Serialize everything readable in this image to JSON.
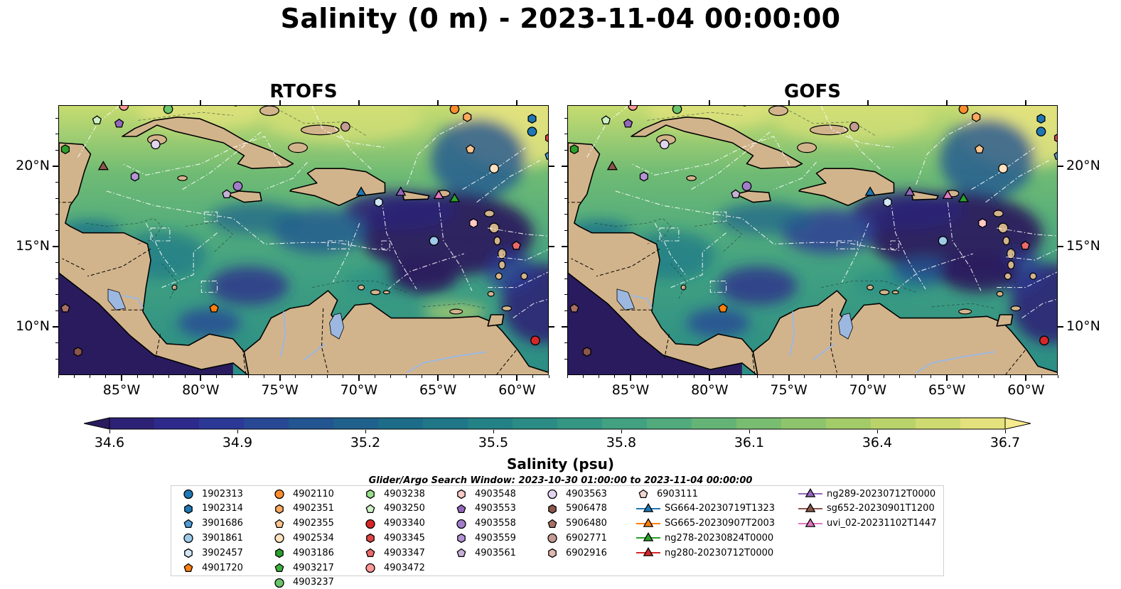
{
  "title": "Salinity (0 m) - 2023-11-04 00:00:00",
  "panels": [
    {
      "title": "RTOFS",
      "variant": "rtofs"
    },
    {
      "title": "GOFS",
      "variant": "gofs"
    }
  ],
  "lon_labels": [
    "85°W",
    "80°W",
    "75°W",
    "70°W",
    "65°W",
    "60°W"
  ],
  "lat_labels": [
    "20°N",
    "15°N",
    "10°N"
  ],
  "colorbar": {
    "ticks": [
      "34.6",
      "34.9",
      "35.2",
      "35.5",
      "35.8",
      "36.1",
      "36.4",
      "36.7"
    ],
    "label": "Salinity (psu)",
    "colors": [
      "#2a1b5e",
      "#2c2175",
      "#2d2a8c",
      "#2b3896",
      "#284896",
      "#235591",
      "#1f618c",
      "#1d6c89",
      "#1f7787",
      "#238286",
      "#2a8c85",
      "#349784",
      "#41a181",
      "#52ab7d",
      "#65b477",
      "#79bd71",
      "#8ec56c",
      "#a3cc69",
      "#b9d36a",
      "#cedb71",
      "#e3e27d",
      "#f6ea8e"
    ]
  },
  "search_window": "Glider/Argo Search Window: 2023-10-30 01:00:00 to 2023-11-04 00:00:00",
  "legend": [
    {
      "label": "1902313",
      "shape": "circle",
      "color": "#1f77b4",
      "kind": "argo"
    },
    {
      "label": "1902314",
      "shape": "hexagon",
      "color": "#1f77b4",
      "kind": "argo"
    },
    {
      "label": "3901686",
      "shape": "pentagon",
      "color": "#4d9bd6",
      "kind": "argo"
    },
    {
      "label": "3901861",
      "shape": "circle",
      "color": "#9ecae9",
      "kind": "argo"
    },
    {
      "label": "3902457",
      "shape": "hexagon",
      "color": "#cfe7f7",
      "kind": "argo"
    },
    {
      "label": "4901720",
      "shape": "pentagon",
      "color": "#ff7f0e",
      "kind": "argo"
    },
    {
      "label": "4902110",
      "shape": "circle",
      "color": "#ff8c2e",
      "kind": "argo"
    },
    {
      "label": "4902351",
      "shape": "hexagon",
      "color": "#ffa860",
      "kind": "argo"
    },
    {
      "label": "4902355",
      "shape": "pentagon",
      "color": "#ffc48e",
      "kind": "argo"
    },
    {
      "label": "4902534",
      "shape": "circle",
      "color": "#ffe2bf",
      "kind": "argo"
    },
    {
      "label": "4903186",
      "shape": "hexagon",
      "color": "#2ca02c",
      "kind": "argo"
    },
    {
      "label": "4903217",
      "shape": "pentagon",
      "color": "#3eb03e",
      "kind": "argo"
    },
    {
      "label": "4903237",
      "shape": "circle",
      "color": "#6ac46a",
      "kind": "argo"
    },
    {
      "label": "4903238",
      "shape": "hexagon",
      "color": "#98df8a",
      "kind": "argo"
    },
    {
      "label": "4903250",
      "shape": "pentagon",
      "color": "#ccf0c4",
      "kind": "argo"
    },
    {
      "label": "4903340",
      "shape": "circle",
      "color": "#d62728",
      "kind": "argo"
    },
    {
      "label": "4903345",
      "shape": "hexagon",
      "color": "#e04445",
      "kind": "argo"
    },
    {
      "label": "4903347",
      "shape": "pentagon",
      "color": "#ea6a6a",
      "kind": "argo"
    },
    {
      "label": "4903472",
      "shape": "circle",
      "color": "#ff9896",
      "kind": "argo"
    },
    {
      "label": "4903548",
      "shape": "hexagon",
      "color": "#ffc9c8",
      "kind": "argo"
    },
    {
      "label": "4903553",
      "shape": "pentagon",
      "color": "#9467bd",
      "kind": "argo"
    },
    {
      "label": "4903558",
      "shape": "circle",
      "color": "#a27dc9",
      "kind": "argo"
    },
    {
      "label": "4903559",
      "shape": "hexagon",
      "color": "#b594d6",
      "kind": "argo"
    },
    {
      "label": "4903561",
      "shape": "pentagon",
      "color": "#c5b0d5",
      "kind": "argo"
    },
    {
      "label": "4903563",
      "shape": "circle",
      "color": "#e2d4ee",
      "kind": "argo"
    },
    {
      "label": "5906478",
      "shape": "hexagon",
      "color": "#8c564b",
      "kind": "argo"
    },
    {
      "label": "5906480",
      "shape": "pentagon",
      "color": "#a87063",
      "kind": "argo"
    },
    {
      "label": "6902771",
      "shape": "circle",
      "color": "#c49c94",
      "kind": "argo"
    },
    {
      "label": "6902916",
      "shape": "hexagon",
      "color": "#e0b8ad",
      "kind": "argo"
    },
    {
      "label": "6903111",
      "shape": "pentagon",
      "color": "#f2d6cf",
      "kind": "argo"
    },
    {
      "label": "SG664-20230719T1323",
      "shape": "triangle",
      "color": "#1f77b4",
      "kind": "glider"
    },
    {
      "label": "SG665-20230907T2003",
      "shape": "triangle",
      "color": "#ff7f0e",
      "kind": "glider"
    },
    {
      "label": "ng278-20230824T0000",
      "shape": "triangle",
      "color": "#2ca02c",
      "kind": "glider"
    },
    {
      "label": "ng280-20230712T0000",
      "shape": "triangle",
      "color": "#d62728",
      "kind": "glider"
    },
    {
      "label": "ng289-20230712T0000",
      "shape": "triangle",
      "color": "#9467bd",
      "kind": "glider"
    },
    {
      "label": "sg652-20230901T1200",
      "shape": "triangle",
      "color": "#8c564b",
      "kind": "glider"
    },
    {
      "label": "uvi_02-20231102T1447",
      "shape": "triangle",
      "color": "#e377c2",
      "kind": "glider"
    }
  ],
  "map_markers": [
    {
      "lon": -59.1,
      "lat": 22.2,
      "shape": "circle",
      "color": "#1f77b4"
    },
    {
      "lon": -59.1,
      "lat": 23.0,
      "shape": "hexagon",
      "color": "#1f77b4"
    },
    {
      "lon": -58.0,
      "lat": 20.7,
      "shape": "pentagon",
      "color": "#4d9bd6"
    },
    {
      "lon": -65.3,
      "lat": 15.4,
      "shape": "circle",
      "color": "#9ecae9"
    },
    {
      "lon": -68.8,
      "lat": 17.8,
      "shape": "hexagon",
      "color": "#cfe7f7"
    },
    {
      "lon": -79.2,
      "lat": 11.2,
      "shape": "pentagon",
      "color": "#ff7f0e"
    },
    {
      "lon": -64.0,
      "lat": 23.6,
      "shape": "circle",
      "color": "#ff8c2e"
    },
    {
      "lon": -63.2,
      "lat": 23.1,
      "shape": "hexagon",
      "color": "#ffa860"
    },
    {
      "lon": -63.0,
      "lat": 21.1,
      "shape": "pentagon",
      "color": "#ffc48e"
    },
    {
      "lon": -61.5,
      "lat": 19.9,
      "shape": "circle",
      "color": "#ffe2bf"
    },
    {
      "lon": -88.6,
      "lat": 21.1,
      "shape": "hexagon",
      "color": "#2ca02c"
    },
    {
      "lon": -82.1,
      "lat": 23.6,
      "shape": "circle",
      "color": "#6ac46a"
    },
    {
      "lon": -86.6,
      "lat": 22.9,
      "shape": "pentagon",
      "color": "#ccf0c4"
    },
    {
      "lon": -58.9,
      "lat": 9.2,
      "shape": "circle",
      "color": "#d62728"
    },
    {
      "lon": -58.0,
      "lat": 21.8,
      "shape": "hexagon",
      "color": "#e04445"
    },
    {
      "lon": -60.1,
      "lat": 15.1,
      "shape": "pentagon",
      "color": "#ea6a6a"
    },
    {
      "lon": -84.9,
      "lat": 23.8,
      "shape": "circle",
      "color": "#ff9896"
    },
    {
      "lon": -62.8,
      "lat": 16.5,
      "shape": "hexagon",
      "color": "#ffc9c8"
    },
    {
      "lon": -85.2,
      "lat": 22.7,
      "shape": "pentagon",
      "color": "#9467bd"
    },
    {
      "lon": -77.7,
      "lat": 18.8,
      "shape": "circle",
      "color": "#a27dc9"
    },
    {
      "lon": -84.2,
      "lat": 19.4,
      "shape": "hexagon",
      "color": "#b594d6"
    },
    {
      "lon": -78.4,
      "lat": 18.3,
      "shape": "pentagon",
      "color": "#c5b0d5"
    },
    {
      "lon": -82.9,
      "lat": 21.4,
      "shape": "circle",
      "color": "#e2d4ee"
    },
    {
      "lon": -87.8,
      "lat": 8.5,
      "shape": "hexagon",
      "color": "#8c564b"
    },
    {
      "lon": -88.6,
      "lat": 11.2,
      "shape": "pentagon",
      "color": "#a87063"
    },
    {
      "lon": -70.9,
      "lat": 22.5,
      "shape": "circle",
      "color": "#c49c94"
    },
    {
      "lon": -69.9,
      "lat": 18.4,
      "shape": "triangle",
      "color": "#1f77b4"
    },
    {
      "lon": -64.0,
      "lat": 18.0,
      "shape": "triangle",
      "color": "#2ca02c"
    },
    {
      "lon": -67.4,
      "lat": 18.4,
      "shape": "triangle",
      "color": "#9467bd"
    },
    {
      "lon": -86.2,
      "lat": 20.0,
      "shape": "triangle",
      "color": "#8c564b"
    },
    {
      "lon": -65.0,
      "lat": 18.2,
      "shape": "triangle",
      "color": "#e377c2"
    }
  ],
  "map_extent": {
    "lon_min": -89.0,
    "lon_max": -58.0,
    "lat_min": 7.0,
    "lat_max": 23.8
  }
}
